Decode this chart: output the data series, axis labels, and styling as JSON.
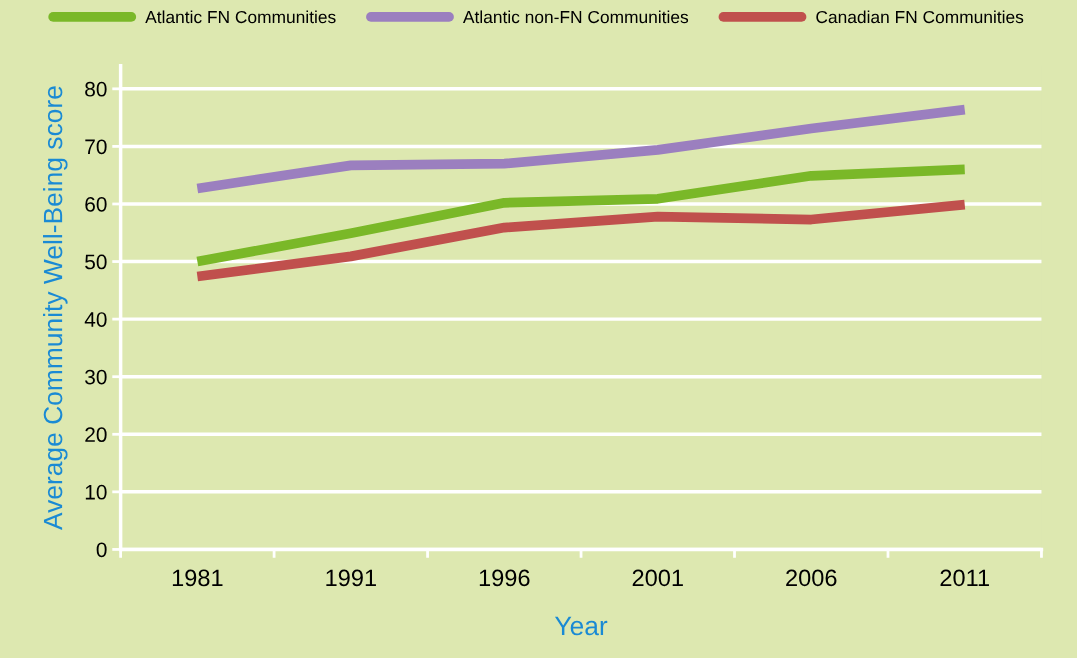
{
  "chart_data": {
    "type": "line",
    "xlabel": "Year",
    "ylabel": "Average Community Well-Being score",
    "categories": [
      "1981",
      "1991",
      "1996",
      "2001",
      "2006",
      "2011"
    ],
    "series": [
      {
        "name": "Atlantic FN Communities",
        "color": "#7ab828",
        "values": [
          50.0,
          54.9,
          60.2,
          60.9,
          64.9,
          66.0
        ]
      },
      {
        "name": "Atlantic non-FN Communities",
        "color": "#9b7fbf",
        "values": [
          62.7,
          66.7,
          67.0,
          69.4,
          73.1,
          76.4
        ]
      },
      {
        "name": "Canadian FN Communities",
        "color": "#c0504d",
        "values": [
          47.4,
          50.9,
          55.9,
          57.8,
          57.3,
          59.9
        ]
      }
    ],
    "ylim": [
      0,
      84
    ],
    "yticks": [
      0,
      10,
      20,
      30,
      40,
      50,
      60,
      70,
      80
    ],
    "grid": "y",
    "legend": "top",
    "marker": "none",
    "line_style": "solid"
  }
}
